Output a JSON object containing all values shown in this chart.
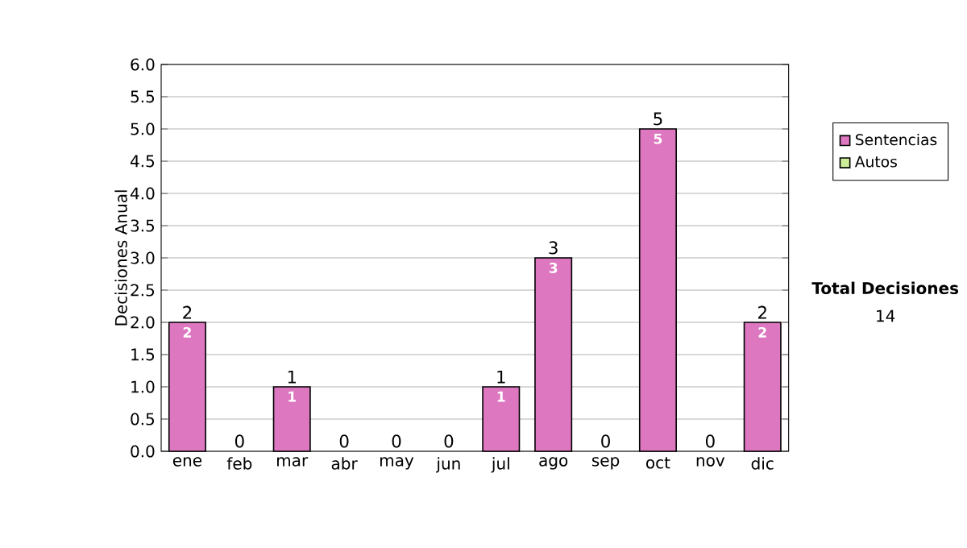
{
  "chart_data": {
    "type": "bar",
    "stacked": true,
    "ylabel": "Decisiones Anual",
    "categories": [
      "ene",
      "feb",
      "mar",
      "abr",
      "may",
      "jun",
      "jul",
      "ago",
      "sep",
      "oct",
      "nov",
      "dic"
    ],
    "series": [
      {
        "name": "Sentencias",
        "color": "#dd77c0",
        "values": [
          2,
          0,
          1,
          0,
          0,
          0,
          1,
          3,
          0,
          5,
          0,
          2
        ],
        "value_labels": [
          "2",
          null,
          "1",
          null,
          null,
          null,
          "1",
          "3",
          null,
          "5",
          null,
          "2"
        ]
      },
      {
        "name": "Autos",
        "color": "#ccee99",
        "values": [
          0,
          0,
          0,
          0,
          0,
          0,
          0,
          0,
          0,
          0,
          0,
          0
        ]
      }
    ],
    "totals": [
      "2",
      "0",
      "1",
      "0",
      "0",
      "0",
      "1",
      "3",
      "0",
      "5",
      "0",
      "2"
    ],
    "ylim": [
      0,
      6
    ],
    "yticks": [
      {
        "value": 0,
        "label": "0.0"
      },
      {
        "value": 0.5,
        "label": "0.5"
      },
      {
        "value": 1,
        "label": "1.0"
      },
      {
        "value": 1.5,
        "label": "1.5"
      },
      {
        "value": 2,
        "label": "2.0"
      },
      {
        "value": 2.5,
        "label": "2.5"
      },
      {
        "value": 3,
        "label": "3.0"
      },
      {
        "value": 3.5,
        "label": "3.5"
      },
      {
        "value": 4,
        "label": "4.0"
      },
      {
        "value": 4.5,
        "label": "4.5"
      },
      {
        "value": 5,
        "label": "5.0"
      },
      {
        "value": 5.5,
        "label": "5.5"
      },
      {
        "value": 6,
        "label": "6.0"
      }
    ],
    "grid": "y",
    "legend": "right",
    "annotations": [
      "Total Decisiones",
      "14"
    ]
  }
}
